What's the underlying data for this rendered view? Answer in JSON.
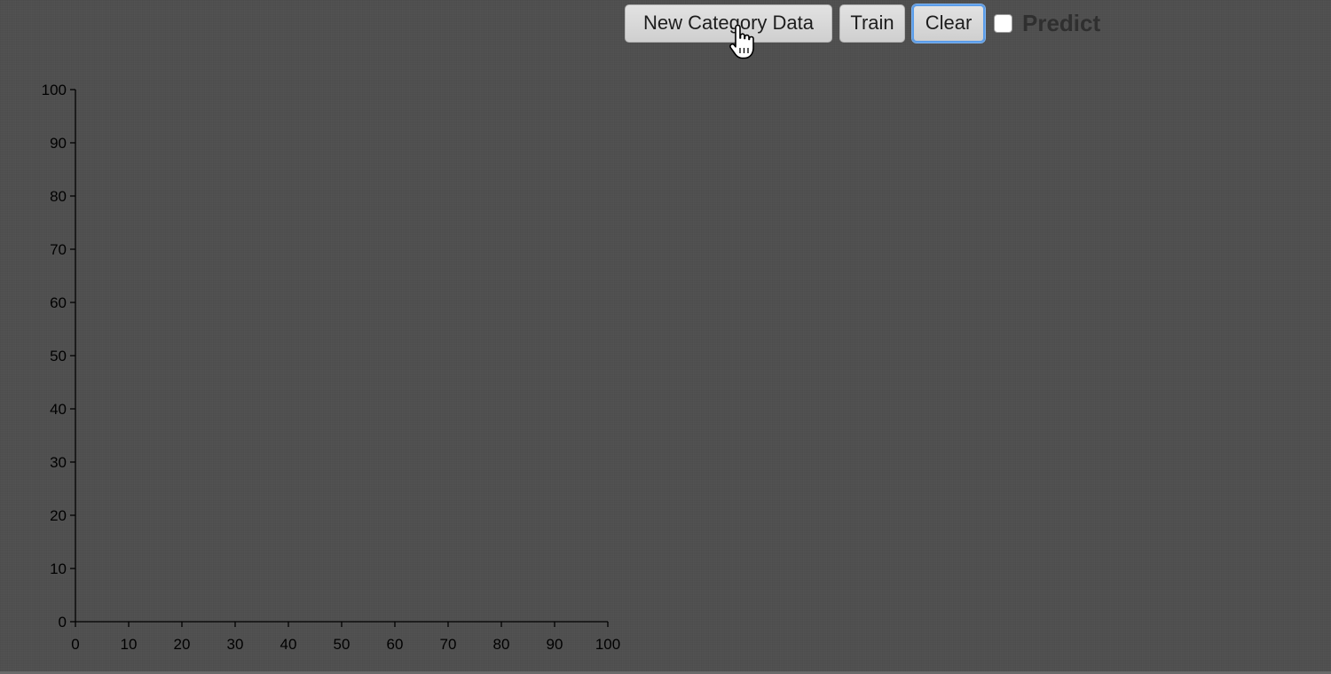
{
  "toolbar": {
    "new_category_label": "New Category Data",
    "train_label": "Train",
    "clear_label": "Clear",
    "predict_label": "Predict",
    "predict_checked": false
  },
  "colors": {
    "background": "#4f4f4f",
    "axis": "#000000",
    "focus_ring": "#5b9de9"
  },
  "icons": {
    "cursor": "hand-pointer-icon"
  },
  "chart_data": {
    "type": "scatter",
    "title": "",
    "xlabel": "",
    "ylabel": "",
    "xlim": [
      0,
      100
    ],
    "ylim": [
      0,
      100
    ],
    "x_ticks": [
      0,
      10,
      20,
      30,
      40,
      50,
      60,
      70,
      80,
      90,
      100
    ],
    "y_ticks": [
      0,
      10,
      20,
      30,
      40,
      50,
      60,
      70,
      80,
      90,
      100
    ],
    "x_tick_labels": [
      "0",
      "10",
      "20",
      "30",
      "40",
      "50",
      "60",
      "70",
      "80",
      "90",
      "100"
    ],
    "y_tick_labels": [
      "0",
      "10",
      "20",
      "30",
      "40",
      "50",
      "60",
      "70",
      "80",
      "90",
      "100"
    ],
    "series": [],
    "grid": false,
    "legend": "none"
  }
}
